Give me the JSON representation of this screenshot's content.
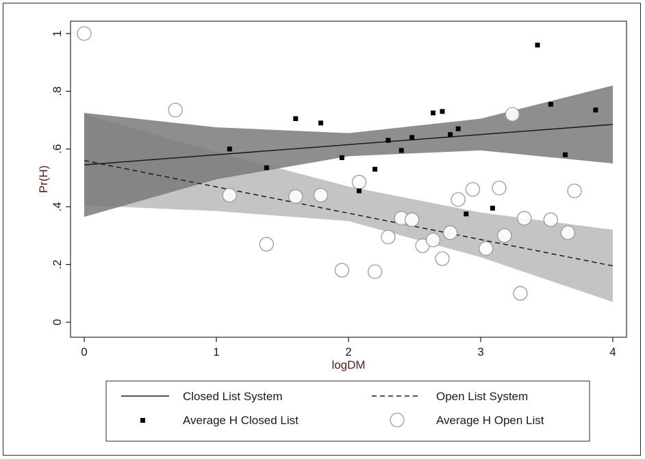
{
  "chart_data": {
    "type": "scatter",
    "xlabel": "logDM",
    "ylabel": "Pr(H)",
    "xlim": [
      0,
      4
    ],
    "ylim": [
      0,
      1
    ],
    "x_ticks": [
      0,
      1,
      2,
      3,
      4
    ],
    "x_tick_labels": [
      "0",
      "1",
      "2",
      "3",
      "4"
    ],
    "y_ticks": [
      0,
      0.2,
      0.4,
      0.6,
      0.8,
      1
    ],
    "y_tick_labels": [
      "0",
      ".2",
      ".4",
      ".6",
      ".8",
      "1"
    ],
    "grid": false,
    "legend_position": "bottom",
    "series": [
      {
        "name": "Closed List System",
        "kind": "fit-line",
        "style": "solid",
        "color": "#1a1a1a",
        "x": [
          0,
          4
        ],
        "y": [
          0.545,
          0.685
        ],
        "ci_band": {
          "color": "#7a7a7a",
          "x": [
            0,
            1,
            2,
            3,
            4
          ],
          "lower": [
            0.365,
            0.495,
            0.575,
            0.595,
            0.55
          ],
          "upper": [
            0.725,
            0.675,
            0.655,
            0.705,
            0.82
          ]
        }
      },
      {
        "name": "Open List System",
        "kind": "fit-line",
        "style": "dashed",
        "color": "#1a1a1a",
        "x": [
          0,
          4
        ],
        "y": [
          0.56,
          0.195
        ],
        "ci_band": {
          "color": "#c4c4c4",
          "x": [
            0,
            1,
            2,
            3,
            4
          ],
          "lower": [
            0.405,
            0.385,
            0.35,
            0.225,
            0.07
          ],
          "upper": [
            0.72,
            0.59,
            0.47,
            0.38,
            0.32
          ]
        }
      },
      {
        "name": "Average H Closed List",
        "kind": "points",
        "marker": "square",
        "color": "#000000",
        "points": [
          [
            1.1,
            0.6
          ],
          [
            1.38,
            0.535
          ],
          [
            1.6,
            0.705
          ],
          [
            1.79,
            0.69
          ],
          [
            1.95,
            0.57
          ],
          [
            2.08,
            0.455
          ],
          [
            2.2,
            0.53
          ],
          [
            2.3,
            0.63
          ],
          [
            2.4,
            0.595
          ],
          [
            2.48,
            0.64
          ],
          [
            2.64,
            0.725
          ],
          [
            2.71,
            0.73
          ],
          [
            2.77,
            0.65
          ],
          [
            2.83,
            0.67
          ],
          [
            2.89,
            0.375
          ],
          [
            3.09,
            0.395
          ],
          [
            3.43,
            0.96
          ],
          [
            3.53,
            0.755
          ],
          [
            3.64,
            0.58
          ],
          [
            3.87,
            0.735
          ]
        ]
      },
      {
        "name": "Average H Open List",
        "kind": "points",
        "marker": "hollow-circle",
        "color": "#9a9a9a",
        "points": [
          [
            0,
            1.0
          ],
          [
            0.69,
            0.735
          ],
          [
            1.1,
            0.44
          ],
          [
            1.38,
            0.27
          ],
          [
            1.6,
            0.435
          ],
          [
            1.79,
            0.44
          ],
          [
            1.95,
            0.18
          ],
          [
            2.08,
            0.485
          ],
          [
            2.2,
            0.175
          ],
          [
            2.3,
            0.295
          ],
          [
            2.4,
            0.36
          ],
          [
            2.48,
            0.355
          ],
          [
            2.56,
            0.265
          ],
          [
            2.64,
            0.285
          ],
          [
            2.71,
            0.22
          ],
          [
            2.77,
            0.31
          ],
          [
            2.83,
            0.425
          ],
          [
            2.94,
            0.46
          ],
          [
            3.04,
            0.255
          ],
          [
            3.14,
            0.465
          ],
          [
            3.18,
            0.3
          ],
          [
            3.24,
            0.72
          ],
          [
            3.3,
            0.1
          ],
          [
            3.33,
            0.36
          ],
          [
            3.53,
            0.355
          ],
          [
            3.66,
            0.31
          ],
          [
            3.71,
            0.455
          ]
        ]
      }
    ]
  }
}
